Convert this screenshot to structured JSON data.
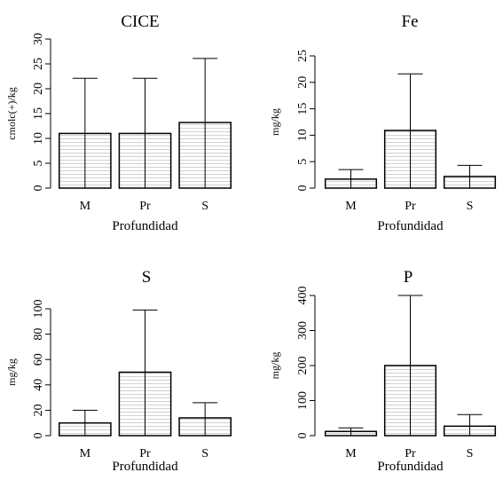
{
  "chart_data": [
    {
      "type": "bar",
      "title": "CICE",
      "xlabel": "Profundidad",
      "ylabel": "cmolc(+)/kg",
      "ylim": [
        0,
        30
      ],
      "yticks": [
        "0",
        "5",
        "10",
        "15",
        "20",
        "25",
        "30"
      ],
      "categories": [
        "M",
        "Pr",
        "S"
      ],
      "values": [
        11,
        11,
        13.2
      ],
      "error_upper": [
        22.1,
        22.1,
        26.1
      ],
      "error_lower": [
        0,
        0,
        0
      ],
      "bar_fill": "horizontal hatch"
    },
    {
      "type": "bar",
      "title": "Fe",
      "xlabel": "Profundidad",
      "ylabel": "mg/kg",
      "ylim": [
        0,
        25
      ],
      "yticks": [
        "0",
        "5",
        "10",
        "15",
        "20",
        "25"
      ],
      "categories": [
        "M",
        "Pr",
        "S"
      ],
      "values": [
        1.7,
        10.9,
        2.2
      ],
      "error_upper": [
        3.5,
        21.6,
        4.3
      ],
      "error_lower": [
        0,
        0,
        0
      ],
      "bar_fill": "horizontal hatch"
    },
    {
      "type": "bar",
      "title": "S",
      "xlabel": "Profundidad",
      "ylabel": "mg/kg",
      "ylim": [
        0,
        100
      ],
      "yticks": [
        "0",
        "20",
        "40",
        "60",
        "80",
        "100"
      ],
      "categories": [
        "M",
        "Pr",
        "S"
      ],
      "values": [
        10,
        50,
        14
      ],
      "error_upper": [
        20,
        99,
        26
      ],
      "error_lower": [
        0,
        0,
        0
      ],
      "bar_fill": "horizontal hatch"
    },
    {
      "type": "bar",
      "title": "P",
      "xlabel": "Profundidad",
      "ylabel": "mg/kg",
      "ylim": [
        0,
        400
      ],
      "yticks": [
        "0",
        "100",
        "200",
        "300",
        "400"
      ],
      "categories": [
        "M",
        "Pr",
        "S"
      ],
      "values": [
        12,
        200,
        27
      ],
      "error_upper": [
        22,
        400,
        60
      ],
      "error_lower": [
        0,
        0,
        0
      ],
      "bar_fill": "horizontal hatch"
    }
  ]
}
